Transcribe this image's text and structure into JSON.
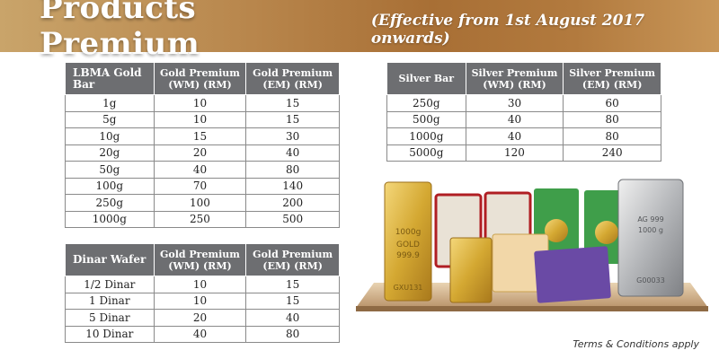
{
  "banner": {
    "title": "Products Premium",
    "subtitle": "(Effective from 1st August 2017 onwards)"
  },
  "gold_table": {
    "headers": [
      "LBMA Gold Bar",
      "Gold Premium (WM) (RM)",
      "Gold Premium (EM) (RM)"
    ],
    "rows": [
      [
        "1g",
        "10",
        "15"
      ],
      [
        "5g",
        "10",
        "15"
      ],
      [
        "10g",
        "15",
        "30"
      ],
      [
        "20g",
        "20",
        "40"
      ],
      [
        "50g",
        "40",
        "80"
      ],
      [
        "100g",
        "70",
        "140"
      ],
      [
        "250g",
        "100",
        "200"
      ],
      [
        "1000g",
        "250",
        "500"
      ]
    ]
  },
  "dinar_table": {
    "headers": [
      "Dinar Wafer",
      "Gold Premium (WM) (RM)",
      "Gold Premium (EM) (RM)"
    ],
    "rows": [
      [
        "1/2 Dinar",
        "10",
        "15"
      ],
      [
        "1 Dinar",
        "10",
        "15"
      ],
      [
        "5 Dinar",
        "20",
        "40"
      ],
      [
        "10 Dinar",
        "40",
        "80"
      ]
    ]
  },
  "silver_table": {
    "headers": [
      "Silver Bar",
      "Silver Premium (WM) (RM)",
      "Silver Premium (EM) (RM)"
    ],
    "rows": [
      [
        "250g",
        "30",
        "60"
      ],
      [
        "500g",
        "40",
        "80"
      ],
      [
        "1000g",
        "40",
        "80"
      ],
      [
        "5000g",
        "120",
        "240"
      ]
    ]
  },
  "product_image": {
    "large_gold_bar_text": [
      "1000g",
      "GOLD",
      "999.9",
      "GXU131"
    ],
    "silver_bar_text": [
      "AG 999",
      "1000 g",
      "G00033"
    ]
  },
  "footer": {
    "terms": "Terms & Conditions apply"
  },
  "colors": {
    "header_bg": "#6d6e71",
    "banner_gold": "#b8864c",
    "gold": "#d4a832",
    "silver": "#b5b7ba"
  }
}
